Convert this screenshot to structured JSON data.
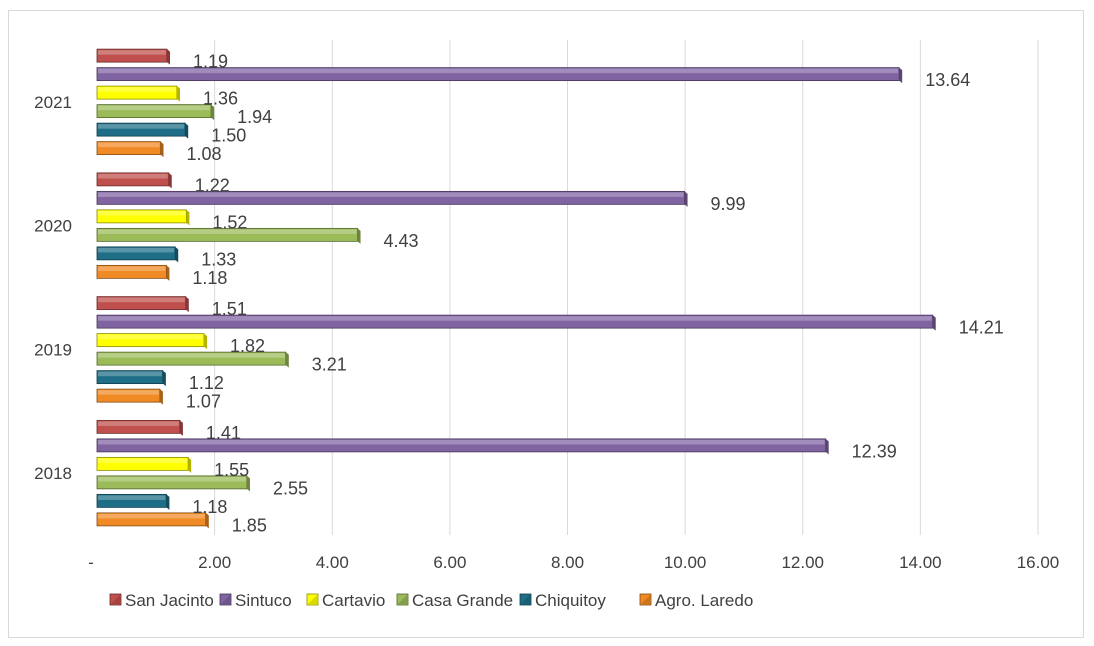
{
  "chart_data": {
    "type": "bar",
    "orientation": "horizontal",
    "categories": [
      "2018",
      "2019",
      "2020",
      "2021"
    ],
    "series": [
      {
        "name": "Agro. Laredo",
        "color": "#F08A24",
        "values": [
          1.85,
          1.07,
          1.18,
          1.08
        ],
        "labels": [
          "1.85",
          "1.07",
          "1.18",
          "1.08"
        ]
      },
      {
        "name": "Chiquitoy",
        "color": "#1E6E87",
        "values": [
          1.18,
          1.12,
          1.33,
          1.5
        ],
        "labels": [
          "1.18",
          "1.12",
          "1.33",
          "1.50"
        ]
      },
      {
        "name": "Casa Grande",
        "color": "#9BBB59",
        "values": [
          2.55,
          3.21,
          4.43,
          1.94
        ],
        "labels": [
          "2.55",
          "3.21",
          "4.43",
          "1.94"
        ]
      },
      {
        "name": "Cartavio",
        "color": "#FFFF00",
        "values": [
          1.55,
          1.82,
          1.52,
          1.36
        ],
        "labels": [
          "1.55",
          "1.82",
          "1.52",
          "1.36"
        ]
      },
      {
        "name": "Sintuco",
        "color": "#8064A2",
        "values": [
          12.39,
          14.21,
          9.99,
          13.64
        ],
        "labels": [
          "12.39",
          "14.21",
          "9.99",
          "13.64"
        ]
      },
      {
        "name": "San Jacinto",
        "color": "#C0504D",
        "values": [
          1.41,
          1.51,
          1.22,
          1.19
        ],
        "labels": [
          "1.41",
          "1.51",
          "1.22",
          "1.19"
        ]
      }
    ],
    "legend_order": [
      "San Jacinto",
      "Sintuco",
      "Cartavio",
      "Casa Grande",
      "Chiquitoy",
      "Agro. Laredo"
    ],
    "xaxis": {
      "min": 0,
      "max": 16,
      "step": 2,
      "tick_labels": [
        "-",
        "2.00",
        "4.00",
        "6.00",
        "8.00",
        "10.00",
        "12.00",
        "14.00",
        "16.00"
      ]
    },
    "grid": true,
    "legend_position": "bottom",
    "title": "",
    "xlabel": "",
    "ylabel": ""
  }
}
